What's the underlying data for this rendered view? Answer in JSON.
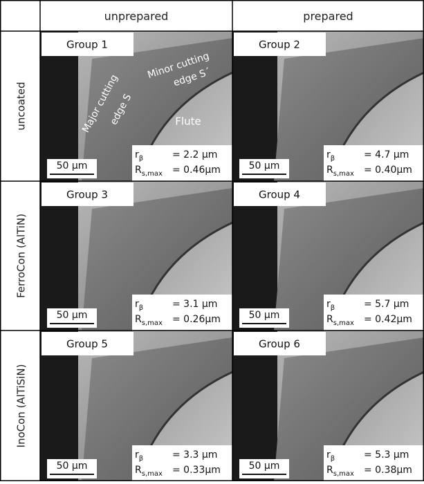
{
  "header": {
    "columns": [
      "unprepared",
      "prepared"
    ]
  },
  "rows": [
    {
      "label": "uncoated",
      "cells": [
        {
          "group": "Group 1",
          "r_value": "= 2.2  µm",
          "rs_value": "= 0.46µm",
          "scale": "50 µm"
        },
        {
          "group": "Group 2",
          "r_value": "= 4.7  µm",
          "rs_value": "= 0.40µm",
          "scale": "50 µm"
        }
      ]
    },
    {
      "label": "FerroCon (AlTiN)",
      "cells": [
        {
          "group": "Group 3",
          "r_value": "= 3.1  µm",
          "rs_value": "= 0.26µm",
          "scale": "50 µm"
        },
        {
          "group": "Group 4",
          "r_value": "= 5.7  µm",
          "rs_value": "= 0.42µm",
          "scale": "50 µm"
        }
      ]
    },
    {
      "label": "InoCon (AlTiSiN)",
      "cells": [
        {
          "group": "Group 5",
          "r_value": "= 3.3  µm",
          "rs_value": "= 0.33µm",
          "scale": "50 µm"
        },
        {
          "group": "Group 6",
          "r_value": "= 5.3  µm",
          "rs_value": "= 0.38µm",
          "scale": "50 µm"
        }
      ]
    }
  ],
  "symbols": {
    "r": "r",
    "r_sub": "β",
    "R": "R",
    "R_sub": "s,max"
  },
  "annotations": {
    "major": [
      "Major cutting",
      "edge S"
    ],
    "minor": [
      "Minor cutting",
      "edge S´"
    ],
    "flute": "Flute"
  }
}
